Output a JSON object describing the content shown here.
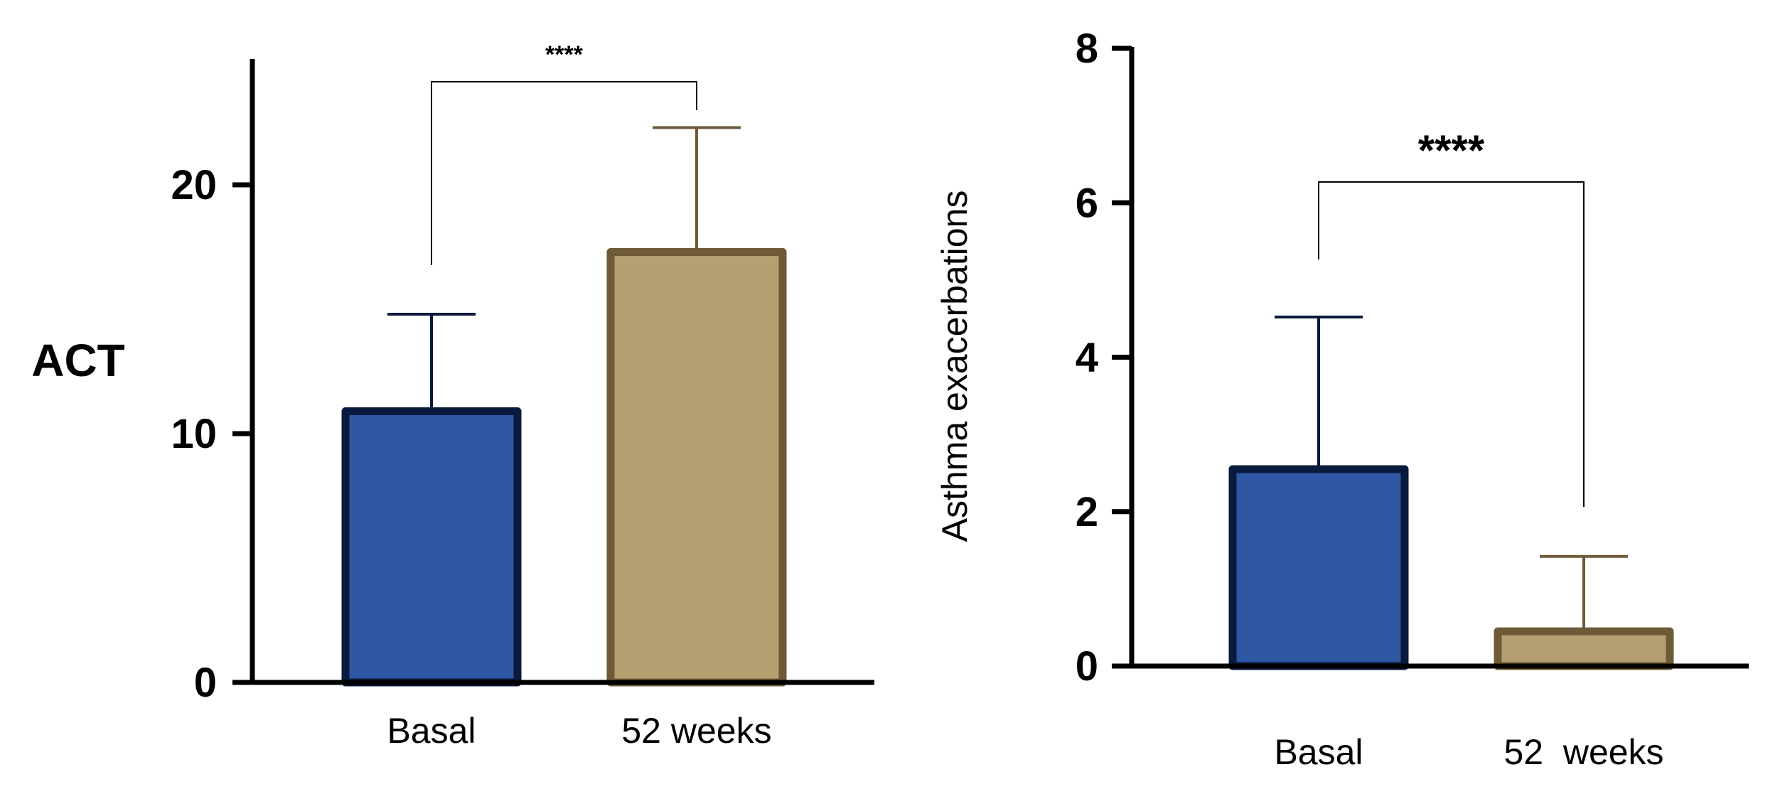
{
  "chart_data": [
    {
      "type": "bar",
      "ylabel": "ACT",
      "xlabel": "",
      "categories": [
        "Basal",
        "52 weeks"
      ],
      "values": [
        10.9,
        17.3
      ],
      "error_upper": [
        14.8,
        22.3
      ],
      "ylim": [
        0,
        25
      ],
      "yticks": [
        0,
        10,
        20
      ],
      "significance": "****",
      "grid": false,
      "colors": {
        "fill": [
          "#2e57a4",
          "#b59e70"
        ],
        "edge": [
          "#0a1a3c",
          "#6f5a37"
        ]
      }
    },
    {
      "type": "bar",
      "ylabel": "Asthma exacerbations",
      "xlabel": "",
      "categories": [
        "Basal",
        "52  weeks"
      ],
      "values": [
        2.55,
        0.45
      ],
      "error_upper": [
        4.52,
        1.42
      ],
      "ylim": [
        0,
        8
      ],
      "yticks": [
        0,
        2,
        4,
        6,
        8
      ],
      "significance": "****",
      "grid": false,
      "colors": {
        "fill": [
          "#2e57a4",
          "#b59e70"
        ],
        "edge": [
          "#0a1a3c",
          "#6f5a37"
        ]
      }
    }
  ]
}
